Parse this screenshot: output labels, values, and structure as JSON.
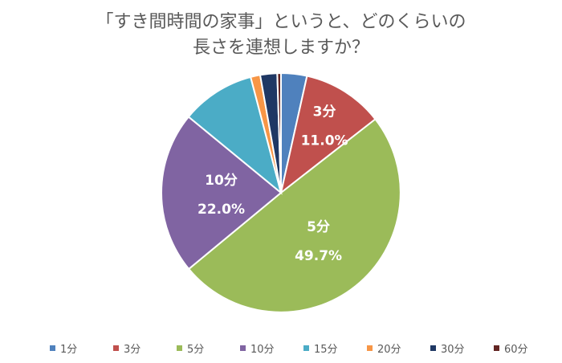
{
  "title_lines": [
    "「すき間時間の家事」というと、どのくらいの",
    "長さを連想しますか？"
  ],
  "chart_data": {
    "type": "pie",
    "categories": [
      "1分",
      "3分",
      "5分",
      "10分",
      "15分",
      "20分",
      "30分",
      "60分"
    ],
    "values": [
      3.5,
      11.0,
      49.7,
      22.0,
      10.0,
      1.3,
      2.3,
      0.5
    ],
    "colors": [
      "#4F81BD",
      "#C0504D",
      "#9BBB59",
      "#8064A2",
      "#4BACC6",
      "#F79646",
      "#1F3864",
      "#632523"
    ],
    "data_labels": [
      {
        "category": "3分",
        "value": "11.0%"
      },
      {
        "category": "5分",
        "value": "49.7%"
      },
      {
        "category": "10分",
        "value": "22.0%"
      }
    ],
    "legend_position": "bottom"
  }
}
